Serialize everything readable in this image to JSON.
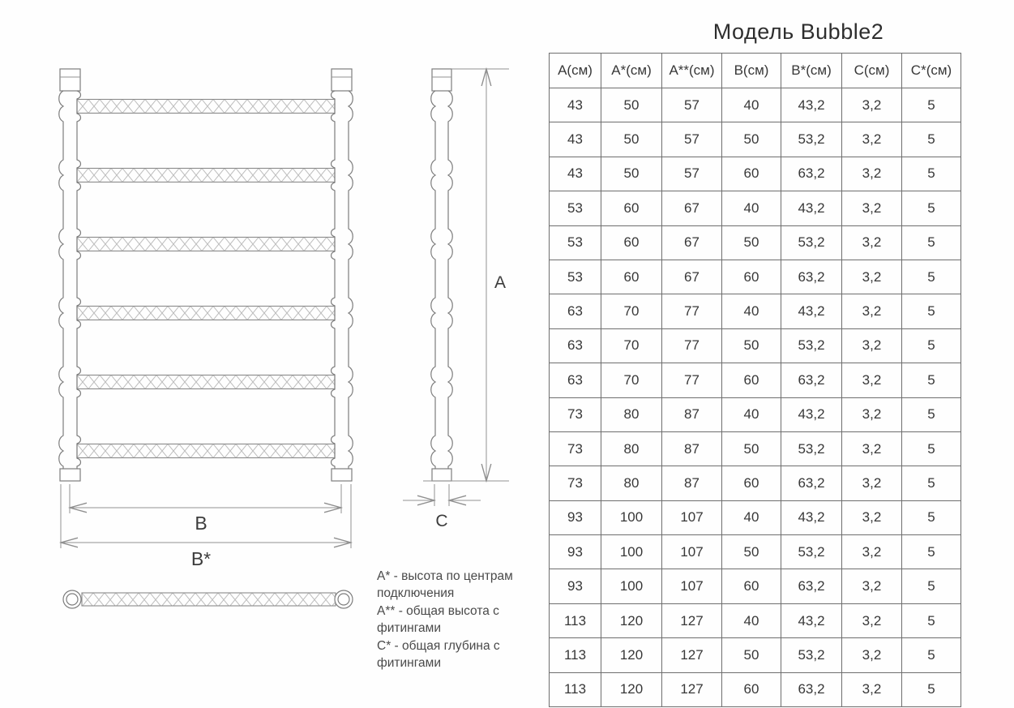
{
  "title": "Модель Bubble2",
  "drawing": {
    "labels": {
      "a": "А",
      "b": "В",
      "b_star": "В*",
      "c": "С"
    }
  },
  "legend": {
    "items": [
      "А* - высота по центрам подключения",
      "А** - общая высота с фитингами",
      "С* - общая глубина с фитингами"
    ]
  },
  "table": {
    "columns": [
      "А(см)",
      "А*(см)",
      "А**(см)",
      "В(см)",
      "В*(см)",
      "С(см)",
      "С*(см)"
    ],
    "rows": [
      [
        "43",
        "50",
        "57",
        "40",
        "43,2",
        "3,2",
        "5"
      ],
      [
        "43",
        "50",
        "57",
        "50",
        "53,2",
        "3,2",
        "5"
      ],
      [
        "43",
        "50",
        "57",
        "60",
        "63,2",
        "3,2",
        "5"
      ],
      [
        "53",
        "60",
        "67",
        "40",
        "43,2",
        "3,2",
        "5"
      ],
      [
        "53",
        "60",
        "67",
        "50",
        "53,2",
        "3,2",
        "5"
      ],
      [
        "53",
        "60",
        "67",
        "60",
        "63,2",
        "3,2",
        "5"
      ],
      [
        "63",
        "70",
        "77",
        "40",
        "43,2",
        "3,2",
        "5"
      ],
      [
        "63",
        "70",
        "77",
        "50",
        "53,2",
        "3,2",
        "5"
      ],
      [
        "63",
        "70",
        "77",
        "60",
        "63,2",
        "3,2",
        "5"
      ],
      [
        "73",
        "80",
        "87",
        "40",
        "43,2",
        "3,2",
        "5"
      ],
      [
        "73",
        "80",
        "87",
        "50",
        "53,2",
        "3,2",
        "5"
      ],
      [
        "73",
        "80",
        "87",
        "60",
        "63,2",
        "3,2",
        "5"
      ],
      [
        "93",
        "100",
        "107",
        "40",
        "43,2",
        "3,2",
        "5"
      ],
      [
        "93",
        "100",
        "107",
        "50",
        "53,2",
        "3,2",
        "5"
      ],
      [
        "93",
        "100",
        "107",
        "60",
        "63,2",
        "3,2",
        "5"
      ],
      [
        "113",
        "120",
        "127",
        "40",
        "43,2",
        "3,2",
        "5"
      ],
      [
        "113",
        "120",
        "127",
        "50",
        "53,2",
        "3,2",
        "5"
      ],
      [
        "113",
        "120",
        "127",
        "60",
        "63,2",
        "3,2",
        "5"
      ]
    ]
  },
  "colors": {
    "drawing_line": "#7d7d7d",
    "hatch": "#bdbdbd",
    "table_border": "#6e6e6e",
    "text": "#383838"
  }
}
